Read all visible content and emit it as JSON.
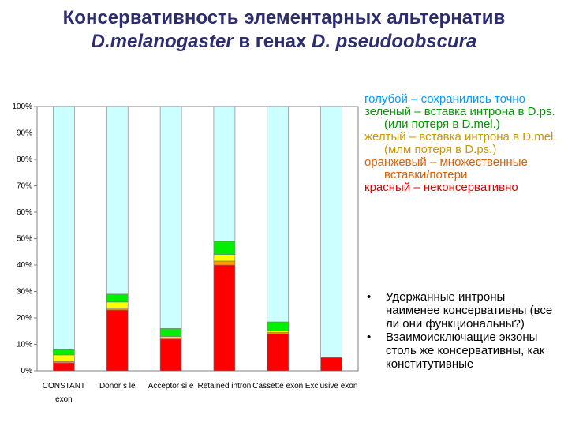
{
  "title": {
    "line1": "Консервативность элементарных альтернатив",
    "line2_species1": "D.melanogaster",
    "line2_mid": " в генах ",
    "line2_species2": "D. pseudoobscura"
  },
  "legend": {
    "items": [
      {
        "text": "голубой – сохранились точно",
        "color": "#0099ff"
      },
      {
        "text": "зеленый – вставка интрона в D.ps. (или потеря в D.mel.)",
        "color": "#009900"
      },
      {
        "text": "желтый – вставка интрона в D.mel.(млм потеря в D.ps.)",
        "color": "#cc9900"
      },
      {
        "text": "оранжевый – множественные вставки/потери",
        "color": "#e06000"
      },
      {
        "text": "красный – неконсервативно",
        "color": "#e00000"
      }
    ]
  },
  "bullets": [
    {
      "text": "Удержанные интроны наименее консервативны (все ли они функциональны?)"
    },
    {
      "text": "Взаимоисключащие экзоны столь же консервативны, как конститутивные"
    }
  ],
  "chart_data": {
    "type": "bar",
    "stacked": true,
    "categories": [
      "CONSTANT exon",
      "Donor site",
      "Acceptor site",
      "Retained intron",
      "Cassette exon",
      "Exclusive exon"
    ],
    "category_labels": [
      "CONSTANT exon",
      "Donor s le",
      "Acceptor si e",
      "Retained intron",
      "Cassette exon",
      "Exclusive exon"
    ],
    "series": [
      {
        "color": "#ff0000",
        "values": [
          3,
          23,
          12,
          40,
          14,
          5
        ]
      },
      {
        "color": "#ff9900",
        "values": [
          0.5,
          0.7,
          0.5,
          1.5,
          0.5,
          0
        ]
      },
      {
        "color": "#ffff00",
        "values": [
          2.5,
          2.3,
          0.5,
          2.5,
          0.5,
          0
        ]
      },
      {
        "color": "#00ee00",
        "values": [
          2,
          3,
          3,
          5,
          3.5,
          0
        ]
      },
      {
        "color": "#ccffff",
        "values": [
          92,
          71,
          84,
          51,
          81.5,
          95
        ]
      }
    ],
    "yticks": [
      "0%",
      "10%",
      "20%",
      "30%",
      "40%",
      "50%",
      "60%",
      "70%",
      "80%",
      "90%",
      "100%"
    ],
    "ylim": [
      0,
      100
    ],
    "grid": false,
    "legend": "none"
  }
}
